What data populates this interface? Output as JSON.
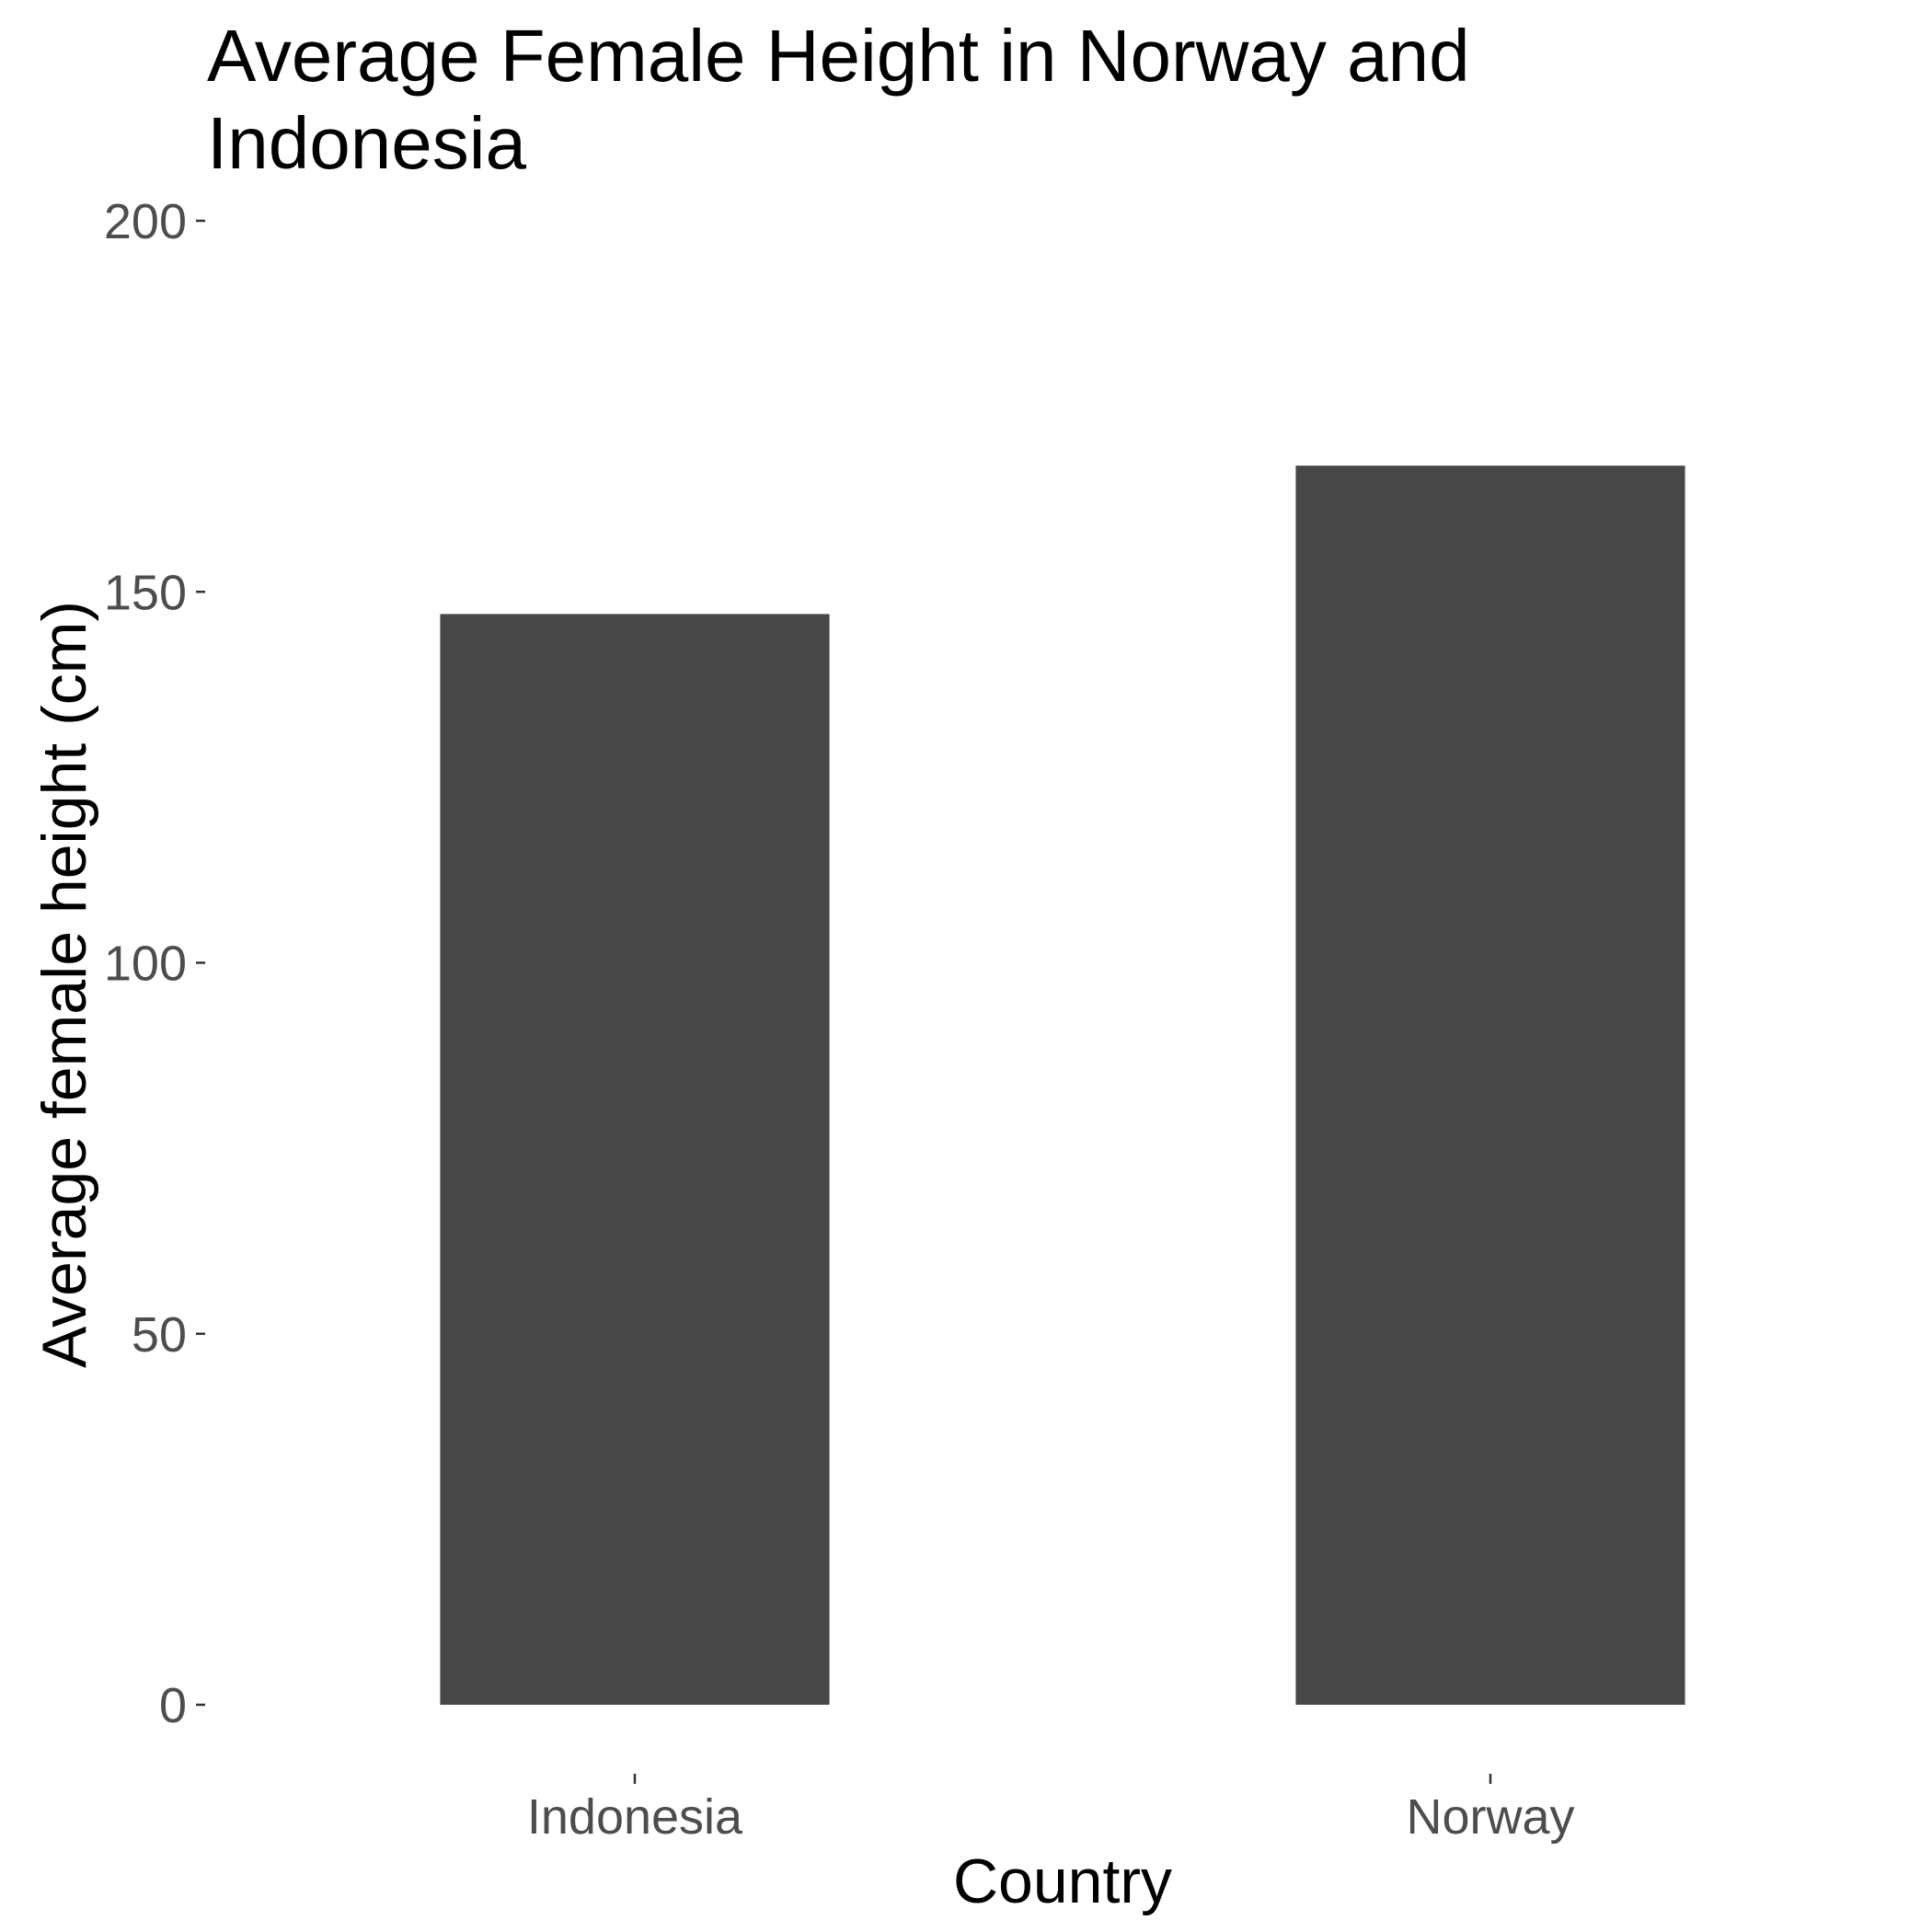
{
  "chart_data": {
    "type": "bar",
    "title_lines": [
      "Average Female Height in Norway and",
      "Indonesia"
    ],
    "xlabel": "Country",
    "ylabel": "Average female height (cm)",
    "categories": [
      "Indonesia",
      "Norway"
    ],
    "values": [
      147,
      167
    ],
    "ylim": [
      0,
      200
    ],
    "yticks": [
      "0",
      "50",
      "100",
      "150",
      "200"
    ],
    "grid": false,
    "legend": "none",
    "bar_color": "#474747",
    "text_color": "#000000",
    "tick_label_color": "#4d4d4d"
  }
}
